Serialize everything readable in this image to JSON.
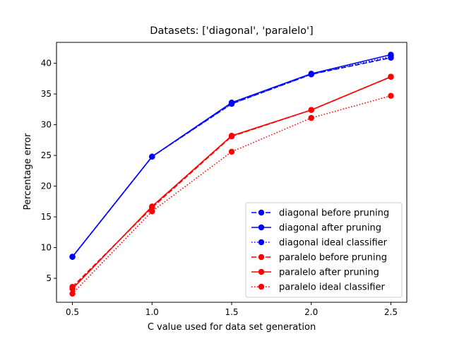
{
  "chart_data": {
    "type": "line",
    "title": "Datasets: ['diagonal', 'paralelo']",
    "xlabel": "C value used for data set generation",
    "ylabel": "Percentage error",
    "x": [
      0.5,
      1.0,
      1.5,
      2.0,
      2.5
    ],
    "x_ticks": [
      "0.5",
      "1.0",
      "1.5",
      "2.0",
      "2.5"
    ],
    "y_ticks": [
      "5",
      "10",
      "15",
      "20",
      "25",
      "30",
      "35",
      "40"
    ],
    "xlim": [
      0.4,
      2.6
    ],
    "ylim": [
      1.1,
      43.4
    ],
    "grid": false,
    "legend_position": "lower-right",
    "series": [
      {
        "name": "diagonal before pruning",
        "color": "#0000ff",
        "linestyle": "dashed",
        "values": [
          8.5,
          24.8,
          33.4,
          38.2,
          40.9
        ]
      },
      {
        "name": "diagonal after pruning",
        "color": "#0000ff",
        "linestyle": "solid",
        "values": [
          8.5,
          24.8,
          33.6,
          38.3,
          41.4
        ]
      },
      {
        "name": "diagonal ideal classifier",
        "color": "#0000ff",
        "linestyle": "dotted",
        "values": [
          8.5,
          24.8,
          33.4,
          38.2,
          41.1
        ]
      },
      {
        "name": "paralelo before pruning",
        "color": "#ff0000",
        "linestyle": "dashed",
        "values": [
          3.6,
          16.5,
          28.1,
          32.4,
          37.8
        ]
      },
      {
        "name": "paralelo after pruning",
        "color": "#ff0000",
        "linestyle": "solid",
        "values": [
          3.3,
          16.7,
          28.2,
          32.4,
          37.8
        ]
      },
      {
        "name": "paralelo ideal classifier",
        "color": "#ff0000",
        "linestyle": "dotted",
        "values": [
          2.5,
          15.9,
          25.6,
          31.1,
          34.7
        ]
      }
    ]
  }
}
